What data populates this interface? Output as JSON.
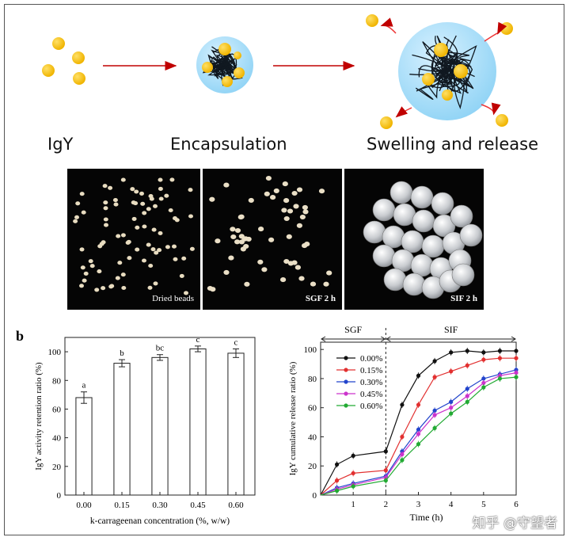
{
  "schematic": {
    "stages": [
      "IgY",
      "Encapsulation",
      "Swelling and release"
    ],
    "ball_color": "#f0b400",
    "bead_color": "#8fd3f5",
    "arrow_color": "#c00000"
  },
  "photos": [
    {
      "caption": "Dried beads"
    },
    {
      "caption": "SGF 2 h"
    },
    {
      "caption": "SIF 2 h"
    }
  ],
  "panel_label": "b",
  "watermark": "知乎 @守望者",
  "chart_data": [
    {
      "type": "bar",
      "title": "",
      "xlabel": "k-carrageenan concentration (%, w/w)",
      "ylabel": "IgY activity retention ratio (%)",
      "categories": [
        "0.00",
        "0.15",
        "0.30",
        "0.45",
        "0.60"
      ],
      "values": [
        68,
        92,
        96,
        102,
        99
      ],
      "errors": [
        4,
        2.5,
        2,
        2,
        3
      ],
      "letters": [
        "a",
        "b",
        "bc",
        "c",
        "c"
      ],
      "ylim": [
        0,
        110
      ],
      "yticks": [
        0,
        20,
        40,
        60,
        80,
        100
      ]
    },
    {
      "type": "line",
      "title": "",
      "xlabel": "Time (h)",
      "ylabel": "IgY cumulative release ratio (%)",
      "phases": [
        {
          "label": "SGF",
          "from": 0,
          "to": 2
        },
        {
          "label": "SIF",
          "from": 2,
          "to": 6
        }
      ],
      "xlim": [
        0,
        6
      ],
      "ylim": [
        0,
        105
      ],
      "xticks": [
        1,
        2,
        3,
        4,
        5,
        6
      ],
      "yticks": [
        0,
        20,
        40,
        60,
        80,
        100
      ],
      "x": [
        0,
        0.5,
        1,
        2,
        2.5,
        3,
        3.5,
        4,
        4.5,
        5,
        5.5,
        6
      ],
      "legend_position": "top-left",
      "series": [
        {
          "name": "0.00%",
          "color": "#111111",
          "values": [
            0,
            21,
            27,
            30,
            62,
            82,
            92,
            98,
            99,
            98,
            99,
            99
          ]
        },
        {
          "name": "0.15%",
          "color": "#e23030",
          "values": [
            0,
            10,
            15,
            17,
            40,
            62,
            81,
            85,
            89,
            93,
            94,
            94
          ]
        },
        {
          "name": "0.30%",
          "color": "#2244cc",
          "values": [
            0,
            5,
            8,
            13,
            30,
            45,
            58,
            64,
            73,
            80,
            83,
            86
          ]
        },
        {
          "name": "0.45%",
          "color": "#cc33cc",
          "values": [
            0,
            4,
            7,
            12,
            28,
            42,
            55,
            60,
            68,
            77,
            82,
            84
          ]
        },
        {
          "name": "0.60%",
          "color": "#22aa33",
          "values": [
            0,
            3,
            6,
            10,
            24,
            35,
            46,
            56,
            64,
            74,
            80,
            81
          ]
        }
      ]
    }
  ]
}
